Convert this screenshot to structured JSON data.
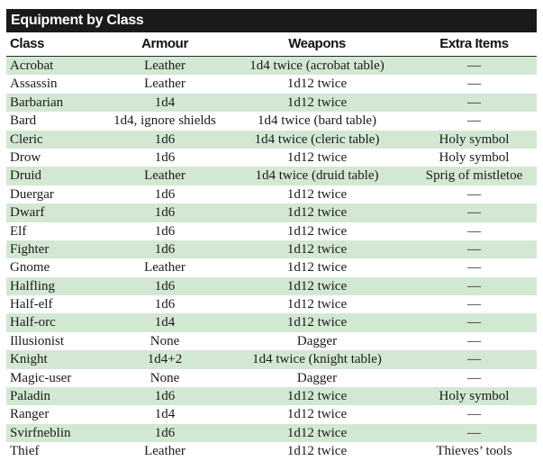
{
  "title": "Equipment by Class",
  "columns": [
    "Class",
    "Armour",
    "Weapons",
    "Extra Items"
  ],
  "rows": [
    [
      "Acrobat",
      "Leather",
      "1d4 twice (acrobat table)",
      "—"
    ],
    [
      "Assassin",
      "Leather",
      "1d12 twice",
      "—"
    ],
    [
      "Barbarian",
      "1d4",
      "1d12 twice",
      "—"
    ],
    [
      "Bard",
      "1d4, ignore shields",
      "1d4 twice (bard table)",
      "—"
    ],
    [
      "Cleric",
      "1d6",
      "1d4 twice (cleric table)",
      "Holy symbol"
    ],
    [
      "Drow",
      "1d6",
      "1d12 twice",
      "Holy symbol"
    ],
    [
      "Druid",
      "Leather",
      "1d4 twice (druid table)",
      "Sprig of mistletoe"
    ],
    [
      "Duergar",
      "1d6",
      "1d12 twice",
      "—"
    ],
    [
      "Dwarf",
      "1d6",
      "1d12 twice",
      "—"
    ],
    [
      "Elf",
      "1d6",
      "1d12 twice",
      "—"
    ],
    [
      "Fighter",
      "1d6",
      "1d12 twice",
      "—"
    ],
    [
      "Gnome",
      "Leather",
      "1d12 twice",
      "—"
    ],
    [
      "Halfling",
      "1d6",
      "1d12 twice",
      "—"
    ],
    [
      "Half-elf",
      "1d6",
      "1d12 twice",
      "—"
    ],
    [
      "Half-orc",
      "1d4",
      "1d12 twice",
      "—"
    ],
    [
      "Illusionist",
      "None",
      "Dagger",
      "—"
    ],
    [
      "Knight",
      "1d4+2",
      "1d4 twice (knight table)",
      "—"
    ],
    [
      "Magic-user",
      "None",
      "Dagger",
      "—"
    ],
    [
      "Paladin",
      "1d6",
      "1d12 twice",
      "Holy symbol"
    ],
    [
      "Ranger",
      "1d4",
      "1d12 twice",
      "—"
    ],
    [
      "Svirfneblin",
      "1d6",
      "1d12 twice",
      "—"
    ],
    [
      "Thief",
      "Leather",
      "1d12 twice",
      "Thieves’ tools"
    ]
  ]
}
